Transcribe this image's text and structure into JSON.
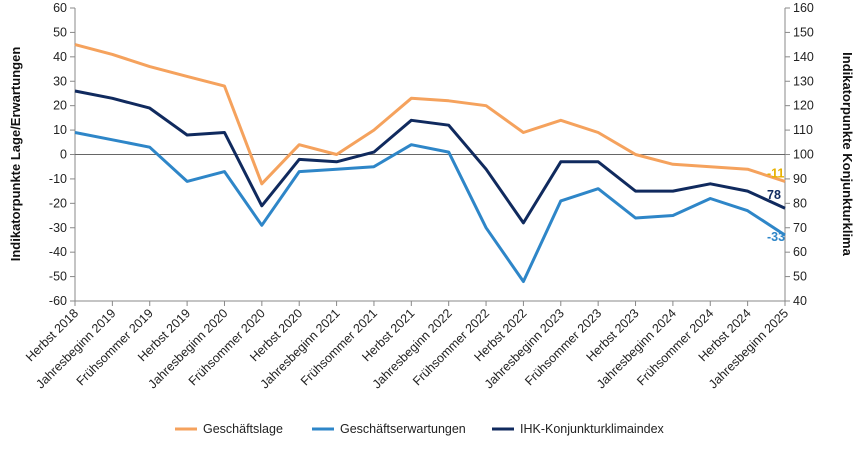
{
  "chart_data": {
    "type": "line",
    "categories": [
      "Herbst 2018",
      "Jahresbeginn 2019",
      "Frühsommer 2019",
      "Herbst 2019",
      "Jahresbeginn 2020",
      "Frühsommer 2020",
      "Herbst 2020",
      "Jahresbeginn 2021",
      "Frühsommer 2021",
      "Herbst 2021",
      "Jahresbeginn 2022",
      "Frühsommer 2022",
      "Herbst 2022",
      "Jahresbeginn 2023",
      "Frühsommer 2023",
      "Herbst 2023",
      "Jahresbeginn 2024",
      "Frühsommer 2024",
      "Herbst 2024",
      "Jahresbeginn 2025"
    ],
    "ylabel": "Indikatorpunkte Lage/Erwartungen",
    "y2label": "Indikatorpunkte Konjunkturklima",
    "ylim": [
      -60,
      60
    ],
    "y2lim": [
      40,
      160
    ],
    "yticks": [
      "60",
      "50",
      "40",
      "30",
      "20",
      "10",
      "0",
      "-10",
      "-20",
      "-30",
      "-40",
      "-50",
      "-60"
    ],
    "y2ticks": [
      "160",
      "150",
      "140",
      "130",
      "120",
      "110",
      "100",
      "90",
      "80",
      "70",
      "60",
      "50",
      "40"
    ],
    "legend_position": "bottom",
    "series": [
      {
        "name": "Geschäftslage",
        "axis": "left",
        "color": "#F5A25D",
        "values": [
          45,
          41,
          36,
          32,
          28,
          -12,
          4,
          0,
          10,
          23,
          22,
          20,
          9,
          14,
          9,
          0,
          -4,
          -5,
          -6,
          -11
        ],
        "end_label": "-11",
        "end_label_color": "#E8B100"
      },
      {
        "name": "Geschäftserwartungen",
        "axis": "left",
        "color": "#2E86C8",
        "values": [
          9,
          6,
          3,
          -11,
          -7,
          -29,
          -7,
          -6,
          -5,
          4,
          1,
          -30,
          -52,
          -19,
          -14,
          -26,
          -25,
          -18,
          -23,
          -33
        ],
        "end_label": "-33",
        "end_label_color": "#2E86C8"
      },
      {
        "name": "IHK-Konjunkturklimaindex",
        "axis": "right",
        "color": "#102A5E",
        "values": [
          126,
          123,
          119,
          108,
          109,
          79,
          98,
          97,
          101,
          114,
          112,
          94,
          72,
          97,
          97,
          85,
          85,
          88,
          85,
          78
        ],
        "end_label": "78",
        "end_label_color": "#102A5E"
      }
    ],
    "zero_line": true,
    "grid": false
  }
}
